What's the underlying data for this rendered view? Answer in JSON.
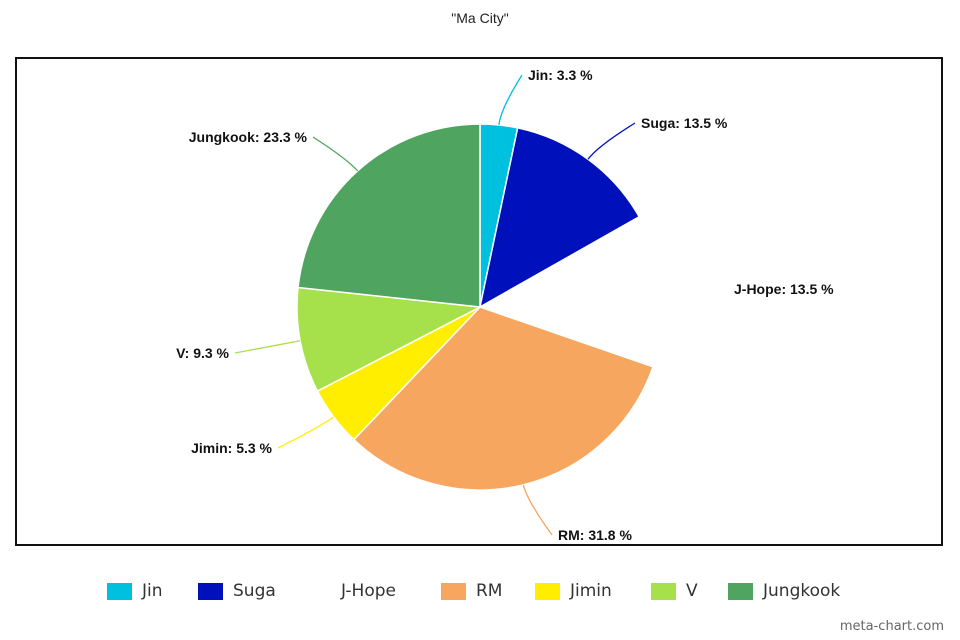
{
  "chart_data": {
    "type": "pie",
    "title": "\"Ma City\"",
    "slices": [
      {
        "label": "Jin",
        "value": 3.3,
        "display": "Jin: 3.3 %",
        "color": "#00c0e0"
      },
      {
        "label": "Suga",
        "value": 13.5,
        "display": "Suga: 13.5 %",
        "color": "#0010bb"
      },
      {
        "label": "J-Hope",
        "value": 13.5,
        "display": "J-Hope: 13.5 %",
        "color": "#ffffff"
      },
      {
        "label": "RM",
        "value": 31.8,
        "display": "RM: 31.8 %",
        "color": "#f6a65e"
      },
      {
        "label": "Jimin",
        "value": 5.3,
        "display": "Jimin: 5.3 %",
        "color": "#ffee00"
      },
      {
        "label": "V",
        "value": 9.3,
        "display": "V: 9.3 %",
        "color": "#a6e04a"
      },
      {
        "label": "Jungkook",
        "value": 23.3,
        "display": "Jungkook: 23.3 %",
        "color": "#4fa45f"
      }
    ],
    "legend_placement": "bottom"
  },
  "watermark": "meta-chart.com"
}
